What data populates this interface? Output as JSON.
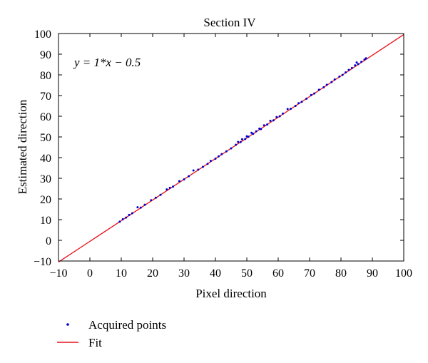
{
  "chart_data": {
    "type": "scatter",
    "title": "Section IV",
    "xlabel": "Pixel direction",
    "ylabel": "Estimated direction",
    "xlim": [
      -10,
      100
    ],
    "ylim": [
      -10,
      100
    ],
    "xticks": [
      -10,
      0,
      10,
      20,
      30,
      40,
      50,
      60,
      70,
      80,
      90,
      100
    ],
    "yticks": [
      -10,
      0,
      10,
      20,
      30,
      40,
      50,
      60,
      70,
      80,
      90,
      100
    ],
    "xtick_labels": [
      "−10",
      "0",
      "10",
      "20",
      "30",
      "40",
      "50",
      "60",
      "70",
      "80",
      "90",
      "100"
    ],
    "ytick_labels": [
      "−10",
      "0",
      "10",
      "20",
      "30",
      "40",
      "50",
      "60",
      "70",
      "80",
      "90",
      "100"
    ],
    "grid": false,
    "legend_placement": "below",
    "annotation": "y = 1*x − 0.5",
    "series": [
      {
        "name": "Acquired points",
        "color": "#0000cc",
        "marker": "dot",
        "points": [
          [
            9.5,
            9.0
          ],
          [
            10.5,
            10.2
          ],
          [
            11.5,
            11.0
          ],
          [
            12.5,
            12.3
          ],
          [
            13.5,
            13.1
          ],
          [
            15.2,
            16.0
          ],
          [
            16.2,
            15.8
          ],
          [
            17.5,
            17.2
          ],
          [
            19.5,
            19.4
          ],
          [
            21.0,
            20.6
          ],
          [
            22.5,
            22.0
          ],
          [
            24.5,
            24.6
          ],
          [
            25.5,
            25.4
          ],
          [
            26.5,
            26.0
          ],
          [
            28.5,
            28.6
          ],
          [
            30.0,
            29.5
          ],
          [
            31.5,
            31.0
          ],
          [
            33.0,
            33.8
          ],
          [
            34.5,
            34.2
          ],
          [
            36.0,
            35.5
          ],
          [
            37.5,
            37.0
          ],
          [
            38.5,
            38.4
          ],
          [
            40.0,
            39.5
          ],
          [
            41.0,
            40.6
          ],
          [
            42.0,
            41.7
          ],
          [
            43.5,
            43.0
          ],
          [
            45.0,
            44.5
          ],
          [
            46.5,
            46.2
          ],
          [
            47.2,
            47.6
          ],
          [
            48.0,
            47.5
          ],
          [
            48.5,
            48.9
          ],
          [
            49.5,
            49.0
          ],
          [
            50.0,
            50.3
          ],
          [
            50.5,
            50.1
          ],
          [
            51.5,
            52.0
          ],
          [
            52.0,
            51.5
          ],
          [
            53.0,
            52.7
          ],
          [
            54.0,
            54.0
          ],
          [
            54.5,
            53.8
          ],
          [
            55.5,
            55.6
          ],
          [
            56.5,
            56.0
          ],
          [
            57.5,
            57.8
          ],
          [
            58.5,
            58.0
          ],
          [
            59.5,
            59.6
          ],
          [
            60.5,
            60.0
          ],
          [
            61.5,
            61.3
          ],
          [
            63.0,
            63.5
          ],
          [
            64.0,
            63.6
          ],
          [
            65.5,
            65.0
          ],
          [
            66.5,
            66.3
          ],
          [
            67.5,
            67.0
          ],
          [
            69.0,
            68.5
          ],
          [
            70.5,
            70.2
          ],
          [
            71.5,
            71.0
          ],
          [
            73.0,
            72.8
          ],
          [
            74.5,
            74.0
          ],
          [
            75.5,
            75.2
          ],
          [
            77.0,
            76.5
          ],
          [
            78.0,
            77.8
          ],
          [
            79.5,
            79.2
          ],
          [
            80.5,
            80.0
          ],
          [
            81.5,
            81.2
          ],
          [
            82.5,
            82.4
          ],
          [
            83.5,
            83.3
          ],
          [
            84.5,
            84.6
          ],
          [
            85.0,
            86.0
          ],
          [
            85.5,
            85.2
          ],
          [
            86.5,
            86.3
          ],
          [
            87.5,
            87.4
          ],
          [
            88.0,
            88.0
          ]
        ]
      },
      {
        "name": "Fit",
        "color": "#e8101a",
        "type": "line",
        "slope": 1,
        "intercept": -0.5,
        "x_range": [
          -10,
          100
        ]
      }
    ]
  }
}
